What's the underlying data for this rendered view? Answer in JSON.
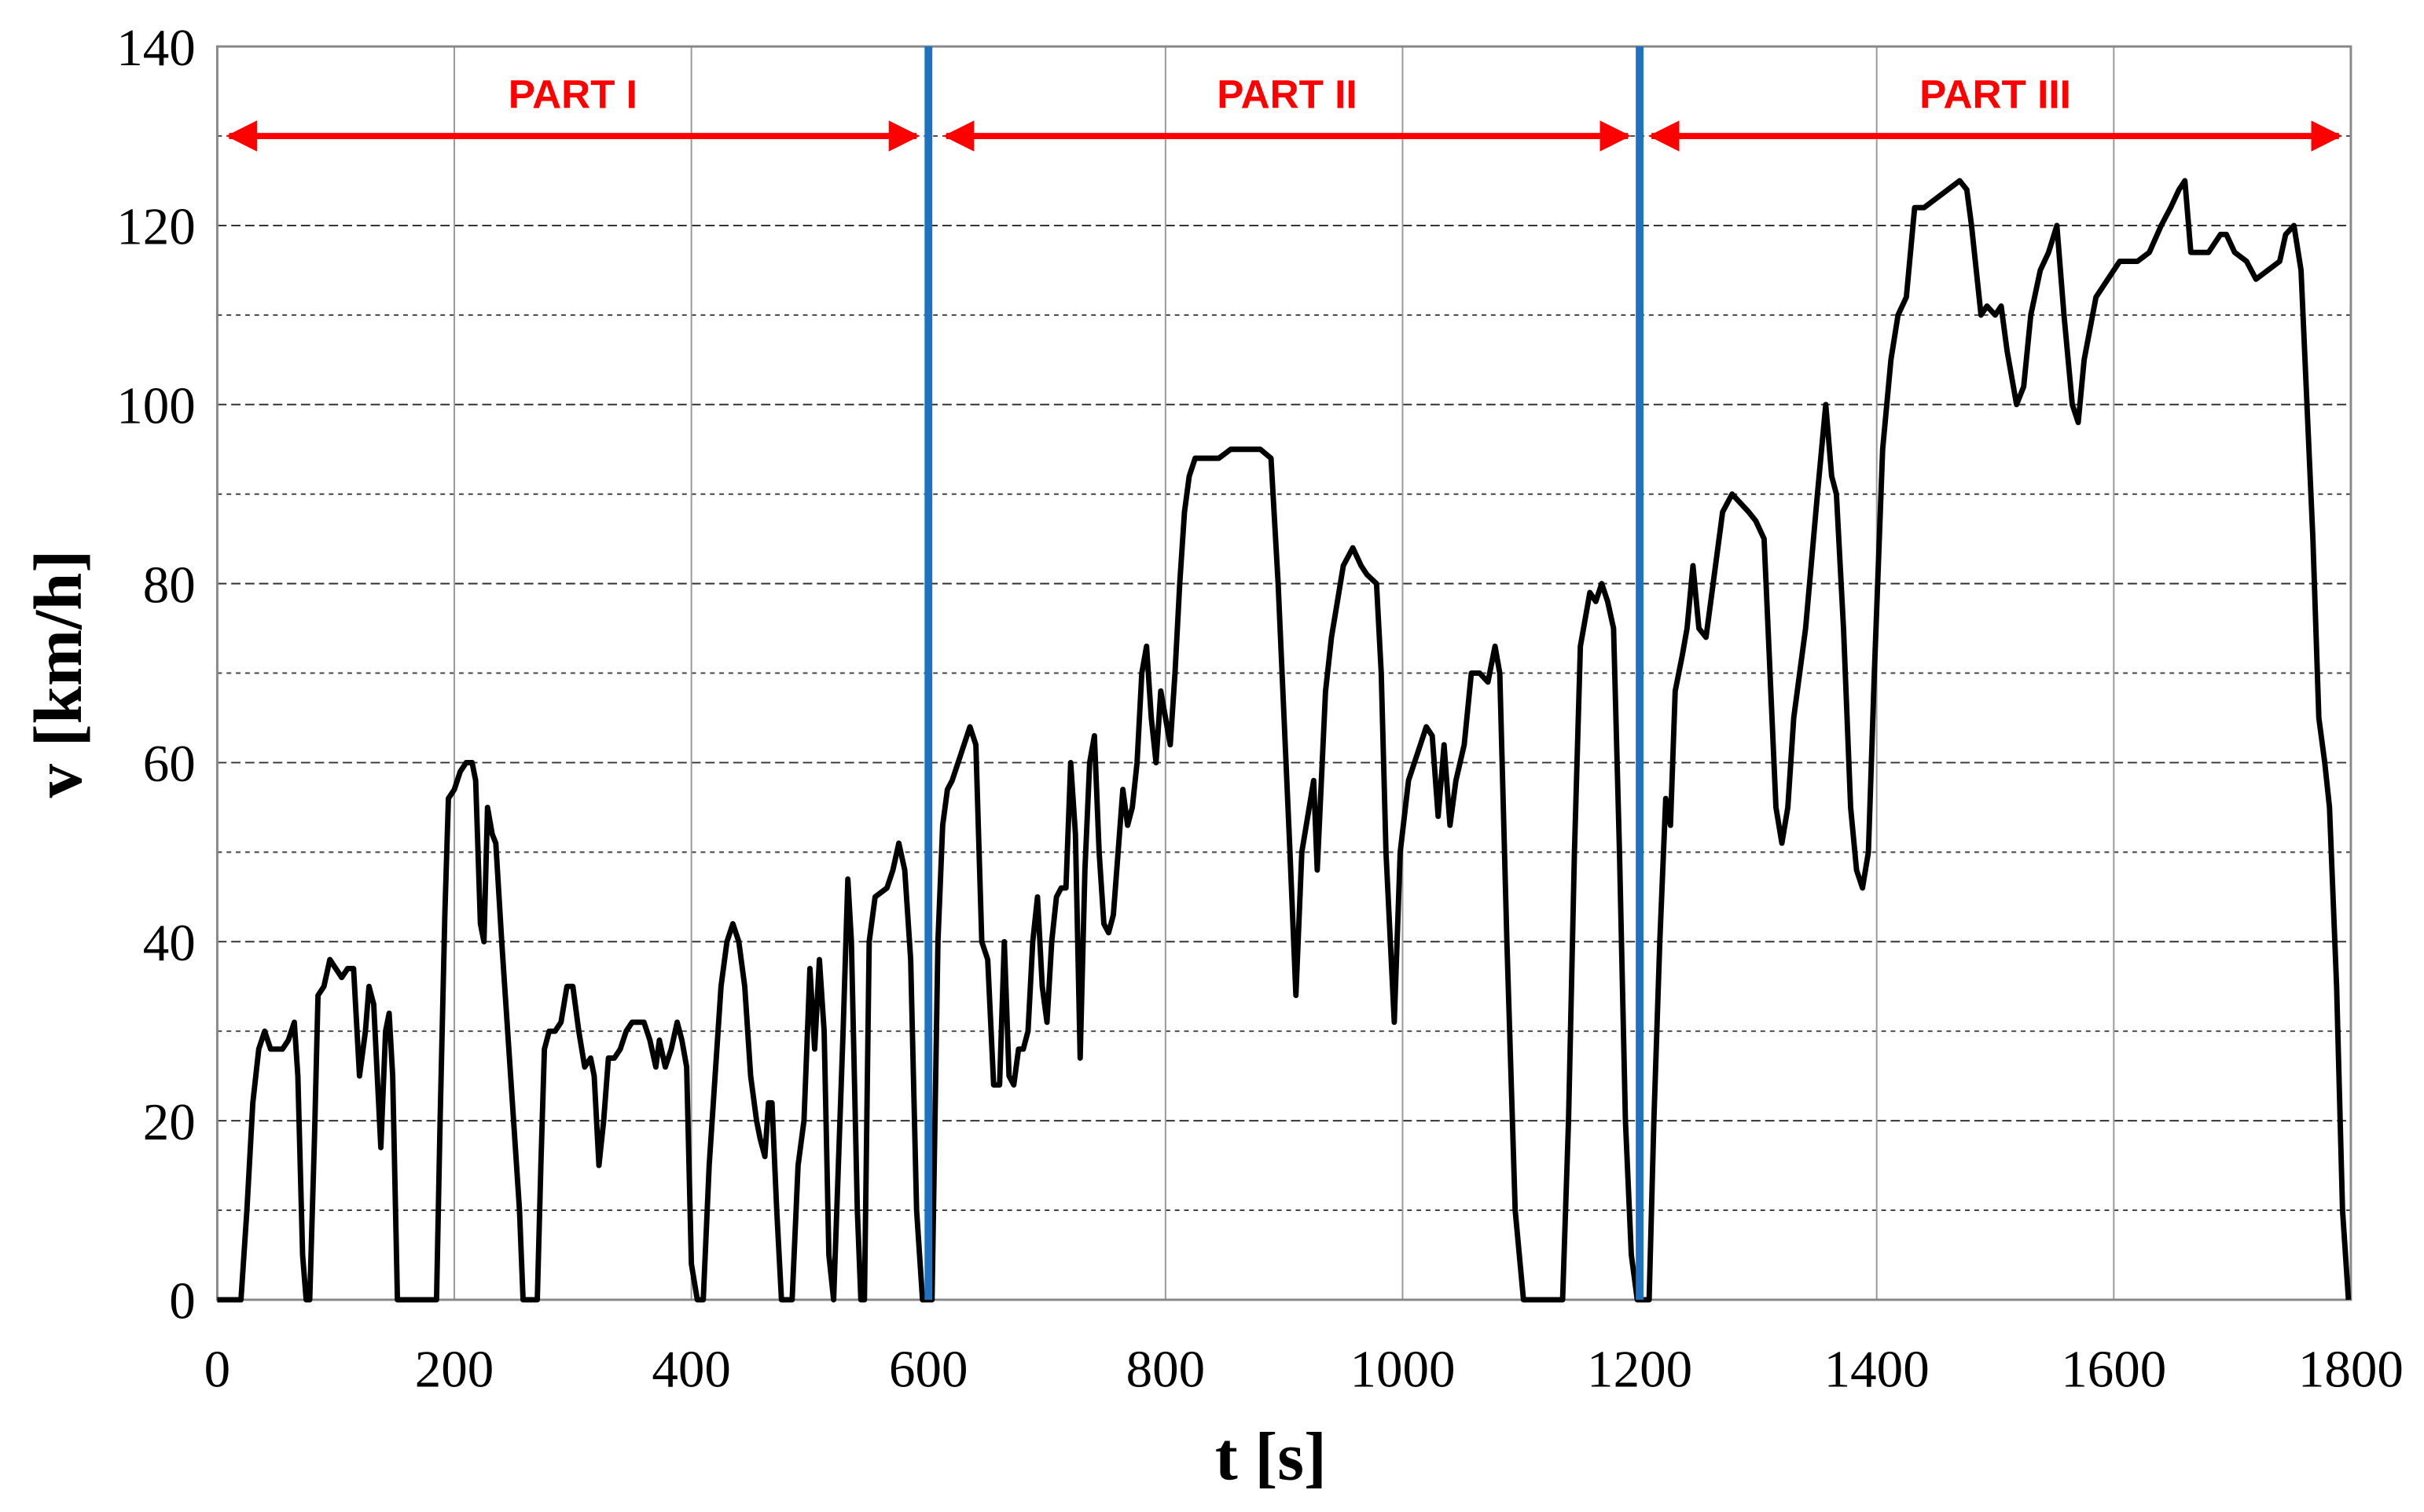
{
  "chart_data": {
    "type": "line",
    "x_label": "t [s]",
    "y_label": "v [km/h]",
    "xlim": [
      0,
      1800
    ],
    "ylim": [
      0,
      140
    ],
    "xticks": [
      0,
      200,
      400,
      600,
      800,
      1000,
      1200,
      1400,
      1600,
      1800
    ],
    "yticks": [
      0,
      20,
      40,
      60,
      80,
      100,
      120,
      140
    ],
    "minor_yticks": [
      10,
      30,
      50,
      70,
      90,
      110,
      130
    ],
    "grid": true,
    "x": [
      0,
      20,
      25,
      30,
      35,
      40,
      45,
      55,
      60,
      65,
      68,
      72,
      75,
      78,
      82,
      85,
      90,
      95,
      100,
      105,
      110,
      115,
      120,
      125,
      128,
      132,
      135,
      138,
      142,
      145,
      148,
      152,
      185,
      188,
      192,
      195,
      200,
      205,
      210,
      215,
      218,
      222,
      225,
      228,
      232,
      235,
      240,
      245,
      250,
      255,
      258,
      270,
      273,
      276,
      280,
      285,
      290,
      295,
      300,
      305,
      310,
      315,
      318,
      322,
      326,
      330,
      335,
      340,
      345,
      350,
      360,
      365,
      370,
      373,
      378,
      383,
      388,
      392,
      396,
      400,
      405,
      410,
      415,
      420,
      425,
      430,
      435,
      440,
      445,
      450,
      455,
      458,
      462,
      465,
      468,
      472,
      476,
      485,
      490,
      495,
      500,
      504,
      508,
      512,
      516,
      520,
      524,
      528,
      532,
      535,
      540,
      543,
      546,
      550,
      555,
      565,
      570,
      575,
      580,
      585,
      590,
      595,
      603,
      608,
      612,
      616,
      620,
      625,
      630,
      635,
      640,
      645,
      650,
      655,
      660,
      664,
      668,
      672,
      676,
      680,
      684,
      688,
      692,
      696,
      700,
      704,
      708,
      712,
      716,
      720,
      724,
      728,
      732,
      736,
      740,
      744,
      748,
      752,
      756,
      760,
      764,
      768,
      772,
      776,
      780,
      784,
      788,
      792,
      796,
      800,
      804,
      808,
      812,
      816,
      820,
      825,
      835,
      845,
      855,
      880,
      889,
      895,
      900,
      905,
      910,
      915,
      920,
      925,
      928,
      935,
      940,
      945,
      950,
      958,
      965,
      970,
      978,
      982,
      986,
      993,
      998,
      1005,
      1010,
      1015,
      1020,
      1025,
      1030,
      1035,
      1040,
      1045,
      1052,
      1058,
      1065,
      1072,
      1078,
      1082,
      1088,
      1095,
      1102,
      1135,
      1140,
      1145,
      1150,
      1158,
      1163,
      1168,
      1173,
      1178,
      1183,
      1188,
      1193,
      1198,
      1208,
      1212,
      1217,
      1222,
      1226,
      1230,
      1236,
      1240,
      1245,
      1250,
      1256,
      1262,
      1270,
      1278,
      1285,
      1292,
      1298,
      1305,
      1310,
      1315,
      1320,
      1325,
      1330,
      1340,
      1350,
      1357,
      1362,
      1366,
      1372,
      1378,
      1383,
      1388,
      1393,
      1398,
      1405,
      1412,
      1418,
      1425,
      1432,
      1440,
      1450,
      1460,
      1470,
      1476,
      1480,
      1488,
      1493,
      1500,
      1505,
      1510,
      1518,
      1524,
      1530,
      1538,
      1545,
      1552,
      1558,
      1565,
      1570,
      1575,
      1585,
      1595,
      1605,
      1620,
      1630,
      1640,
      1648,
      1655,
      1660,
      1665,
      1672,
      1680,
      1690,
      1695,
      1702,
      1712,
      1720,
      1730,
      1740,
      1745,
      1752,
      1758,
      1763,
      1768,
      1773,
      1778,
      1782,
      1788,
      1793,
      1798
    ],
    "series": [
      {
        "color": "#000000",
        "values": [
          0,
          0,
          10,
          22,
          28,
          30,
          28,
          28,
          29,
          31,
          25,
          5,
          0,
          0,
          18,
          34,
          35,
          38,
          37,
          36,
          37,
          37,
          25,
          30,
          35,
          33,
          25,
          17,
          30,
          32,
          25,
          0,
          0,
          20,
          43,
          56,
          57,
          59,
          60,
          60,
          58,
          42,
          40,
          55,
          52,
          51,
          40,
          30,
          20,
          10,
          0,
          0,
          15,
          28,
          30,
          30,
          31,
          35,
          35,
          30,
          26,
          27,
          25,
          15,
          20,
          27,
          27,
          28,
          30,
          31,
          31,
          29,
          26,
          29,
          26,
          28,
          31,
          29,
          26,
          4,
          0,
          0,
          15,
          25,
          35,
          40,
          42,
          40,
          35,
          25,
          20,
          18,
          16,
          22,
          22,
          10,
          0,
          0,
          15,
          20,
          37,
          28,
          38,
          30,
          5,
          0,
          15,
          30,
          47,
          40,
          10,
          0,
          0,
          40,
          45,
          46,
          48,
          51,
          48,
          38,
          10,
          0,
          0,
          40,
          53,
          57,
          58,
          60,
          62,
          64,
          62,
          40,
          38,
          24,
          24,
          40,
          25,
          24,
          28,
          28,
          30,
          40,
          45,
          35,
          31,
          40,
          45,
          46,
          46,
          60,
          52,
          27,
          48,
          60,
          63,
          50,
          42,
          41,
          43,
          50,
          57,
          53,
          55,
          60,
          70,
          73,
          65,
          60,
          68,
          65,
          62,
          70,
          80,
          88,
          92,
          94,
          94,
          94,
          95,
          95,
          94,
          80,
          65,
          50,
          34,
          50,
          54,
          58,
          48,
          68,
          74,
          78,
          82,
          84,
          82,
          81,
          80,
          70,
          50,
          31,
          50,
          58,
          60,
          62,
          64,
          63,
          54,
          62,
          53,
          58,
          62,
          70,
          70,
          69,
          73,
          70,
          40,
          10,
          0,
          0,
          20,
          50,
          73,
          79,
          78,
          80,
          78,
          75,
          50,
          20,
          5,
          0,
          0,
          20,
          40,
          56,
          53,
          68,
          72,
          75,
          82,
          75,
          74,
          80,
          88,
          90,
          89,
          88,
          87,
          85,
          70,
          55,
          51,
          55,
          65,
          75,
          90,
          100,
          92,
          90,
          75,
          55,
          48,
          46,
          50,
          70,
          95,
          105,
          110,
          112,
          122,
          122,
          123,
          124,
          125,
          124,
          120,
          110,
          111,
          110,
          111,
          106,
          100,
          102,
          110,
          115,
          117,
          120,
          110,
          100,
          98,
          105,
          112,
          114,
          116,
          116,
          117,
          120,
          122,
          124,
          125,
          117,
          117,
          117,
          119,
          119,
          117,
          116,
          114,
          115,
          116,
          119,
          120,
          115,
          100,
          85,
          65,
          60,
          55,
          35,
          10,
          0
        ]
      }
    ],
    "vlines": [
      {
        "x": 600,
        "color": "#1f72c0"
      },
      {
        "x": 1200,
        "color": "#1f72c0"
      }
    ],
    "annotations": [
      {
        "text": "PART I",
        "x": [
          10,
          590
        ],
        "y": 130,
        "color": "#ff0000"
      },
      {
        "text": "PART II",
        "x": [
          615,
          1190
        ],
        "y": 130,
        "color": "#ff0000"
      },
      {
        "text": "PART III",
        "x": [
          1210,
          1790
        ],
        "y": 130,
        "color": "#ff0000"
      }
    ]
  }
}
